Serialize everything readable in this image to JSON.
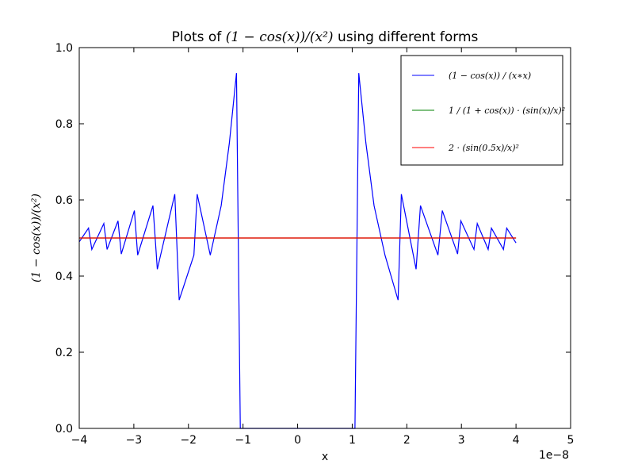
{
  "chart_data": {
    "type": "line",
    "title_prefix": "Plots of ",
    "title_math": "(1 − cos(x))/(x²)",
    "title_suffix": " using different forms",
    "xlabel": "x",
    "ylabel": "(1 − cos(x))/(x²)",
    "x_scale_label": "1e−8",
    "xlim": [
      -4,
      5
    ],
    "ylim": [
      0.0,
      1.0
    ],
    "xticks": [
      -4,
      -3,
      -2,
      -1,
      0,
      1,
      2,
      3,
      4,
      5
    ],
    "xtick_labels": [
      "−4",
      "−3",
      "−2",
      "−1",
      "0",
      "1",
      "2",
      "3",
      "4",
      "5"
    ],
    "yticks": [
      0.0,
      0.2,
      0.4,
      0.6,
      0.8,
      1.0
    ],
    "ytick_labels": [
      "0.0",
      "0.2",
      "0.4",
      "0.6",
      "0.8",
      "1.0"
    ],
    "grid": false,
    "legend_position": "top-right",
    "series": [
      {
        "name": "(1 − cos(x)) / (x∗x)",
        "color": "#0000ff",
        "x": [
          -4.0,
          -3.83,
          -3.77,
          -3.55,
          -3.49,
          -3.29,
          -3.23,
          -2.99,
          -2.93,
          -2.65,
          -2.57,
          -2.25,
          -2.17,
          -1.9,
          -1.84,
          -1.6,
          -1.4,
          -1.25,
          -1.12,
          -1.05,
          1.05,
          1.12,
          1.25,
          1.4,
          1.6,
          1.84,
          1.9,
          2.17,
          2.25,
          2.57,
          2.65,
          2.93,
          2.99,
          3.23,
          3.29,
          3.49,
          3.55,
          3.77,
          3.83,
          4.0
        ],
        "y": [
          0.49,
          0.526,
          0.47,
          0.538,
          0.47,
          0.545,
          0.458,
          0.572,
          0.455,
          0.585,
          0.418,
          0.615,
          0.337,
          0.455,
          0.615,
          0.455,
          0.585,
          0.75,
          0.933,
          0.0,
          0.0,
          0.933,
          0.75,
          0.585,
          0.455,
          0.337,
          0.615,
          0.418,
          0.585,
          0.455,
          0.572,
          0.458,
          0.545,
          0.47,
          0.538,
          0.47,
          0.526,
          0.47,
          0.526,
          0.487
        ]
      },
      {
        "name": "1 / (1 + cos(x)) · (sin(x)/x)²",
        "color": "#008000",
        "x": [
          -4.0,
          4.0
        ],
        "y": [
          0.5,
          0.5
        ]
      },
      {
        "name": "2 · (sin(0.5x)/x)²",
        "color": "#ff0000",
        "x": [
          -4.0,
          4.0
        ],
        "y": [
          0.5,
          0.5
        ]
      }
    ]
  }
}
